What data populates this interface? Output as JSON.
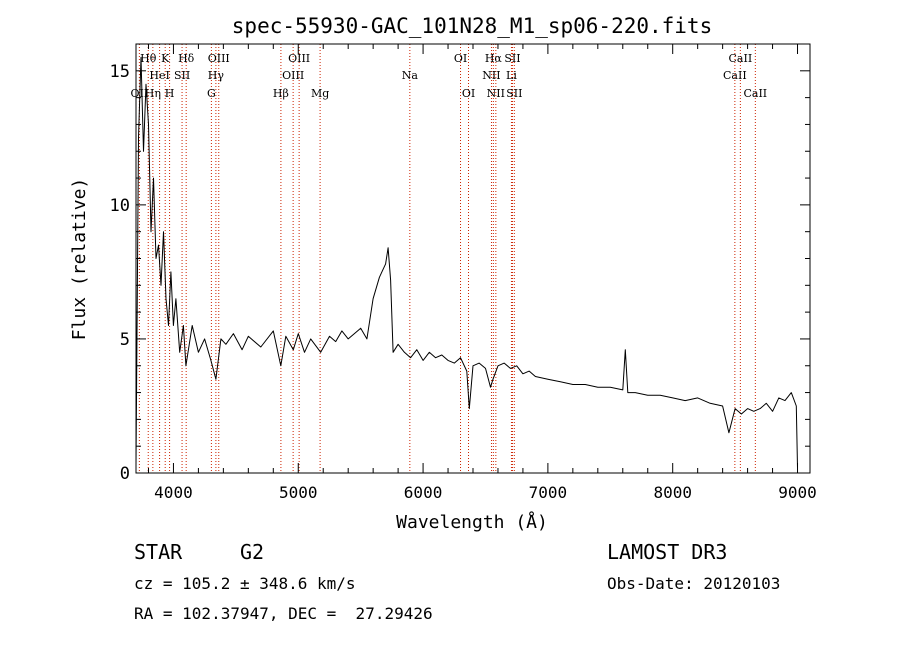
{
  "chart_data": {
    "type": "line",
    "title": "spec-55930-GAC_101N28_M1_sp06-220.fits",
    "xlabel": "Wavelength (Å)",
    "ylabel": "Flux (relative)",
    "xlim": [
      3700,
      9100
    ],
    "ylim": [
      0,
      16
    ],
    "x_ticks": [
      4000,
      5000,
      6000,
      7000,
      8000,
      9000
    ],
    "x_tick_labels": [
      "4000",
      "5000",
      "6000",
      "7000",
      "8000",
      "9000"
    ],
    "y_ticks": [
      0,
      5,
      10,
      15
    ],
    "y_tick_labels": [
      "0",
      "5",
      "10",
      "15"
    ],
    "grid": false,
    "line_color": "#000000",
    "marker_color": "#cc2200",
    "series": [
      {
        "name": "flux",
        "points": [
          [
            3700,
            0.3
          ],
          [
            3720,
            12.5
          ],
          [
            3740,
            15.5
          ],
          [
            3760,
            12.0
          ],
          [
            3780,
            14.5
          ],
          [
            3800,
            13.0
          ],
          [
            3820,
            9.0
          ],
          [
            3840,
            11.0
          ],
          [
            3860,
            8.0
          ],
          [
            3880,
            8.5
          ],
          [
            3900,
            7.0
          ],
          [
            3920,
            9.0
          ],
          [
            3940,
            6.5
          ],
          [
            3960,
            5.5
          ],
          [
            3980,
            7.5
          ],
          [
            4000,
            5.5
          ],
          [
            4020,
            6.5
          ],
          [
            4050,
            4.5
          ],
          [
            4080,
            5.5
          ],
          [
            4100,
            4.0
          ],
          [
            4150,
            5.5
          ],
          [
            4200,
            4.5
          ],
          [
            4250,
            5.0
          ],
          [
            4300,
            4.2
          ],
          [
            4340,
            3.5
          ],
          [
            4380,
            5.0
          ],
          [
            4420,
            4.8
          ],
          [
            4480,
            5.2
          ],
          [
            4550,
            4.6
          ],
          [
            4600,
            5.1
          ],
          [
            4700,
            4.7
          ],
          [
            4800,
            5.3
          ],
          [
            4860,
            4.0
          ],
          [
            4900,
            5.1
          ],
          [
            4960,
            4.6
          ],
          [
            5000,
            5.2
          ],
          [
            5050,
            4.5
          ],
          [
            5100,
            5.0
          ],
          [
            5180,
            4.5
          ],
          [
            5250,
            5.1
          ],
          [
            5300,
            4.9
          ],
          [
            5350,
            5.3
          ],
          [
            5400,
            5.0
          ],
          [
            5450,
            5.2
          ],
          [
            5500,
            5.4
          ],
          [
            5550,
            5.0
          ],
          [
            5600,
            6.5
          ],
          [
            5650,
            7.3
          ],
          [
            5700,
            7.8
          ],
          [
            5720,
            8.4
          ],
          [
            5740,
            7.2
          ],
          [
            5760,
            4.5
          ],
          [
            5800,
            4.8
          ],
          [
            5850,
            4.5
          ],
          [
            5900,
            4.3
          ],
          [
            5950,
            4.6
          ],
          [
            6000,
            4.2
          ],
          [
            6050,
            4.5
          ],
          [
            6100,
            4.3
          ],
          [
            6150,
            4.4
          ],
          [
            6200,
            4.2
          ],
          [
            6250,
            4.1
          ],
          [
            6300,
            4.3
          ],
          [
            6350,
            3.8
          ],
          [
            6370,
            2.4
          ],
          [
            6400,
            4.0
          ],
          [
            6450,
            4.1
          ],
          [
            6500,
            3.9
          ],
          [
            6540,
            3.2
          ],
          [
            6560,
            3.5
          ],
          [
            6600,
            4.0
          ],
          [
            6650,
            4.1
          ],
          [
            6700,
            3.9
          ],
          [
            6750,
            4.0
          ],
          [
            6800,
            3.7
          ],
          [
            6850,
            3.8
          ],
          [
            6900,
            3.6
          ],
          [
            7000,
            3.5
          ],
          [
            7100,
            3.4
          ],
          [
            7200,
            3.3
          ],
          [
            7300,
            3.3
          ],
          [
            7400,
            3.2
          ],
          [
            7500,
            3.2
          ],
          [
            7600,
            3.1
          ],
          [
            7620,
            4.6
          ],
          [
            7640,
            3.0
          ],
          [
            7700,
            3.0
          ],
          [
            7800,
            2.9
          ],
          [
            7900,
            2.9
          ],
          [
            8000,
            2.8
          ],
          [
            8100,
            2.7
          ],
          [
            8200,
            2.8
          ],
          [
            8300,
            2.6
          ],
          [
            8400,
            2.5
          ],
          [
            8450,
            1.5
          ],
          [
            8500,
            2.4
          ],
          [
            8550,
            2.2
          ],
          [
            8600,
            2.4
          ],
          [
            8650,
            2.3
          ],
          [
            8700,
            2.4
          ],
          [
            8750,
            2.6
          ],
          [
            8800,
            2.3
          ],
          [
            8850,
            2.8
          ],
          [
            8900,
            2.7
          ],
          [
            8950,
            3.0
          ],
          [
            8990,
            2.5
          ],
          [
            9000,
            0.2
          ]
        ]
      }
    ],
    "line_markers": [
      {
        "label": "OII",
        "x": 3727,
        "row": 3
      },
      {
        "label": "Hθ",
        "x": 3798,
        "row": 1
      },
      {
        "label": "Hη",
        "x": 3835,
        "row": 3
      },
      {
        "label": "K",
        "x": 3934,
        "row": 1
      },
      {
        "label": "HeI",
        "x": 3889,
        "row": 2
      },
      {
        "label": "H",
        "x": 3969,
        "row": 3
      },
      {
        "label": "SII",
        "x": 4069,
        "row": 2
      },
      {
        "label": "Hδ",
        "x": 4102,
        "row": 1
      },
      {
        "label": "OIII",
        "x": 4363,
        "row": 1
      },
      {
        "label": "Hγ",
        "x": 4340,
        "row": 2
      },
      {
        "label": "G",
        "x": 4304,
        "row": 3
      },
      {
        "label": "Hβ",
        "x": 4861,
        "row": 3
      },
      {
        "label": "OIII",
        "x": 5007,
        "row": 1
      },
      {
        "label": "OIII",
        "x": 4959,
        "row": 2
      },
      {
        "label": "Mg",
        "x": 5175,
        "row": 3
      },
      {
        "label": "Na",
        "x": 5894,
        "row": 2
      },
      {
        "label": "OI",
        "x": 6300,
        "row": 1
      },
      {
        "label": "OI",
        "x": 6364,
        "row": 3
      },
      {
        "label": "Hα",
        "x": 6563,
        "row": 1
      },
      {
        "label": "NII",
        "x": 6548,
        "row": 2
      },
      {
        "label": "NII",
        "x": 6583,
        "row": 3
      },
      {
        "label": "SII",
        "x": 6716,
        "row": 1
      },
      {
        "label": "Li",
        "x": 6708,
        "row": 2
      },
      {
        "label": "SII",
        "x": 6731,
        "row": 3
      },
      {
        "label": "CaII",
        "x": 8542,
        "row": 1
      },
      {
        "label": "CaII",
        "x": 8498,
        "row": 2
      },
      {
        "label": "CaII",
        "x": 8662,
        "row": 3
      }
    ]
  },
  "info": {
    "class_label": "STAR",
    "subclass": "G2",
    "survey": "LAMOST DR3",
    "cz": "cz = 105.2 ± 348.6 km/s",
    "obs_date": "Obs-Date: 20120103",
    "coords": "RA = 102.37947, DEC =  27.29426"
  }
}
